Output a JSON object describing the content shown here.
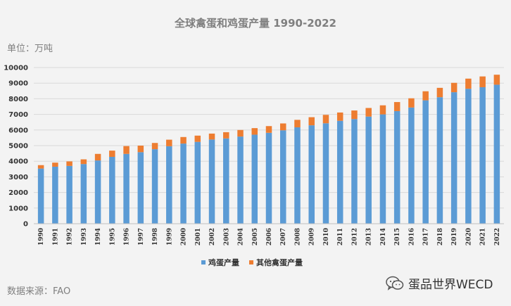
{
  "header": {
    "title": "全球禽蛋和鸡蛋产量 1990-2022",
    "unit": "单位：万吨"
  },
  "footer": {
    "source": "数据来源：FAO",
    "watermark": "蛋品世界WECD",
    "watermark_icon": "wechat-icon"
  },
  "colors": {
    "chicken": "#5b9bd5",
    "other": "#ed7d31",
    "grid": "#d9d9d9",
    "axis": "#bfbfbf"
  },
  "chart_data": {
    "type": "bar",
    "stacked": true,
    "title": "全球禽蛋和鸡蛋产量 1990-2022",
    "ylabel": "单位：万吨",
    "ylim": [
      0,
      10000
    ],
    "yticks": [
      0,
      1000,
      2000,
      3000,
      4000,
      5000,
      6000,
      7000,
      8000,
      9000,
      10000
    ],
    "grid": true,
    "legend_position": "bottom",
    "categories": [
      "1990",
      "1991",
      "1992",
      "1993",
      "1994",
      "1995",
      "1996",
      "1997",
      "1998",
      "1999",
      "2000",
      "2001",
      "2002",
      "2003",
      "2004",
      "2005",
      "2006",
      "2007",
      "2008",
      "2009",
      "2010",
      "2011",
      "2012",
      "2013",
      "2014",
      "2015",
      "2016",
      "2017",
      "2018",
      "2019",
      "2020",
      "2021",
      "2022"
    ],
    "series": [
      {
        "name": "鸡蛋产量",
        "values": [
          3530,
          3650,
          3700,
          3820,
          4050,
          4280,
          4470,
          4580,
          4770,
          4960,
          5130,
          5240,
          5390,
          5460,
          5580,
          5700,
          5820,
          5980,
          6170,
          6300,
          6430,
          6590,
          6700,
          6860,
          7000,
          7210,
          7440,
          7900,
          8100,
          8420,
          8640,
          8740,
          8900
        ]
      },
      {
        "name": "其他禽蛋产量",
        "values": [
          220,
          260,
          290,
          300,
          420,
          400,
          500,
          420,
          400,
          420,
          420,
          400,
          380,
          400,
          420,
          420,
          430,
          440,
          480,
          520,
          540,
          530,
          550,
          550,
          580,
          580,
          590,
          580,
          600,
          600,
          650,
          690,
          640
        ]
      }
    ]
  }
}
